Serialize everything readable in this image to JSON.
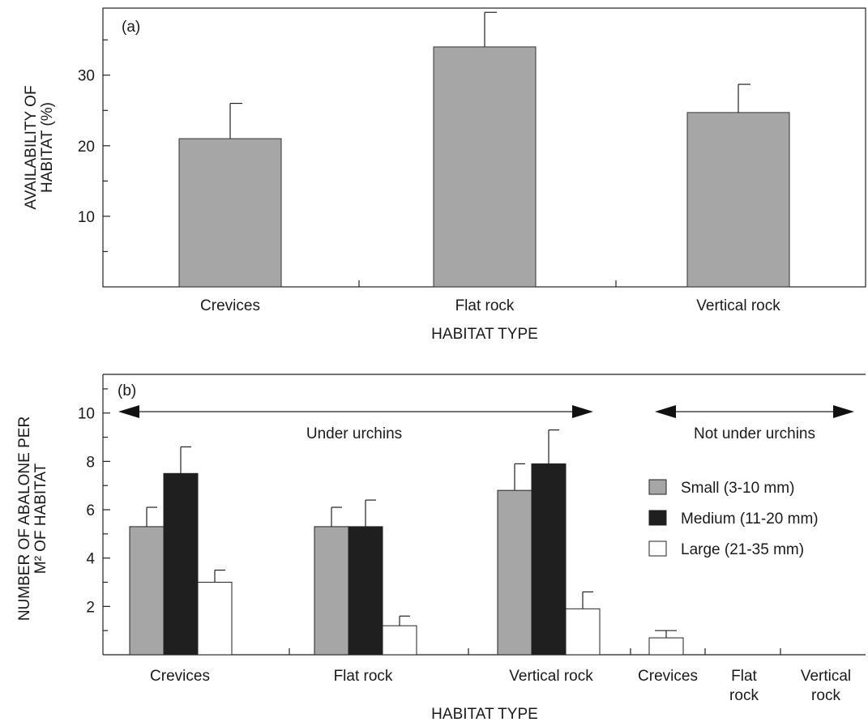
{
  "chart_data": [
    {
      "type": "bar",
      "panel_label": "(a)",
      "categories": [
        "Crevices",
        "Flat rock",
        "Vertical rock"
      ],
      "values": [
        21,
        34,
        24.7
      ],
      "errors": [
        26,
        38.9,
        28.7
      ],
      "ylabel_lines": [
        "AVAILABILITY OF",
        "HABITAT (%)"
      ],
      "xlabel": "HABITAT TYPE",
      "yticks": [
        10,
        20,
        30
      ],
      "ylim": [
        0,
        39.5
      ],
      "bar_color": "#a6a6a6",
      "grid": false
    },
    {
      "type": "bar",
      "panel_label": "(b)",
      "groups": [
        {
          "lines": [
            "Crevices"
          ],
          "values": [
            5.3,
            7.5,
            3.0
          ],
          "errors": [
            6.1,
            8.6,
            3.5
          ]
        },
        {
          "lines": [
            "Flat rock"
          ],
          "values": [
            5.3,
            5.3,
            1.2
          ],
          "errors": [
            6.1,
            6.4,
            1.6
          ]
        },
        {
          "lines": [
            "Vertical rock"
          ],
          "values": [
            6.8,
            7.9,
            1.9
          ],
          "errors": [
            7.9,
            9.3,
            2.6
          ]
        },
        {
          "lines": [
            "Crevices"
          ],
          "values": [
            0,
            0,
            0.7
          ],
          "errors": [
            0,
            0,
            1.0
          ]
        },
        {
          "lines": [
            "Flat",
            "rock"
          ],
          "values": [
            0,
            0,
            0
          ],
          "errors": [
            0,
            0,
            0
          ]
        },
        {
          "lines": [
            "Vertical",
            "rock"
          ],
          "values": [
            0,
            0,
            0
          ],
          "errors": [
            0,
            0,
            0
          ]
        }
      ],
      "series": [
        {
          "name": "Small (3-10 mm)",
          "color": "#a6a6a6"
        },
        {
          "name": "Medium (11-20 mm)",
          "color": "#1f1f1f"
        },
        {
          "name": "Large (21-35 mm)",
          "color": "#ffffff"
        }
      ],
      "annotations": [
        "Under urchins",
        "Not under urchins"
      ],
      "ylabel_lines": [
        "NUMBER OF ABALONE PER",
        "M² OF HABITAT"
      ],
      "xlabel": "HABITAT TYPE",
      "yticks": [
        2,
        4,
        6,
        8,
        10
      ],
      "ylim": [
        0,
        11.6
      ],
      "legend_position": "right",
      "grid": false
    }
  ]
}
